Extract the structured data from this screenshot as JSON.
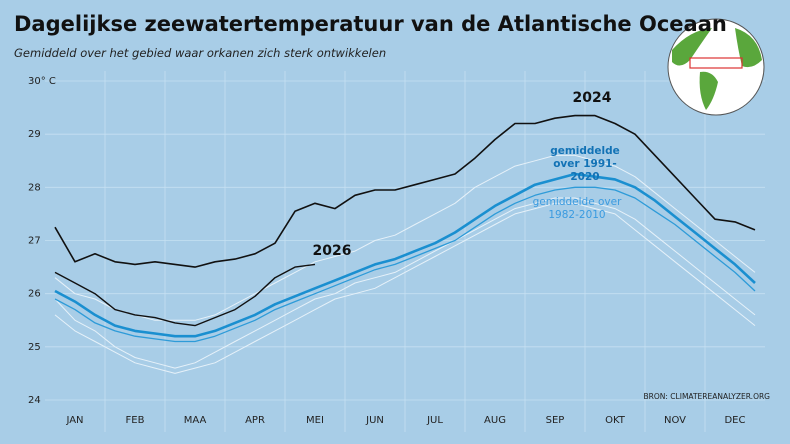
{
  "chart_data": {
    "type": "line",
    "title": "Dagelijkse zeewatertemperatuur van de Atlantische Oceaan",
    "subtitle": "Gemiddeld over het gebied waar orkanen zich sterk ontwikkelen",
    "source": "BRON: CLIMATEREANALYZER.ORG",
    "categories": [
      null,
      "JAN",
      null,
      null,
      "FEB",
      null,
      null,
      "MAA",
      null,
      null,
      "APR",
      null,
      null,
      "MEI",
      null,
      null,
      "JUN",
      null,
      null,
      "JUL",
      null,
      null,
      "AUG",
      null,
      null,
      "SEP",
      null,
      null,
      "OKT",
      null,
      null,
      "NOV",
      null,
      null,
      "DEC",
      null
    ],
    "ylim": [
      24,
      30
    ],
    "yticks": [
      24,
      25,
      26,
      27,
      28,
      29,
      {
        "value": 30,
        "label": "30° C"
      }
    ],
    "grid": true,
    "series": [
      {
        "color": "#e6f1f9",
        "values": [
          25.9,
          25.5,
          25.3,
          25.0,
          24.8,
          24.7,
          24.6,
          24.7,
          24.9,
          25.1,
          25.3,
          25.5,
          25.7,
          25.9,
          26.0,
          26.2,
          26.3,
          26.4,
          26.6,
          26.8,
          27.0,
          27.2,
          27.4,
          27.6,
          27.7,
          27.8,
          27.8,
          27.7,
          27.6,
          27.4,
          27.1,
          26.8,
          26.5,
          26.2,
          25.9,
          25.6
        ]
      },
      {
        "color": "#e6f1f9",
        "values": [
          26.3,
          26.0,
          25.9,
          25.7,
          25.6,
          25.5,
          25.5,
          25.5,
          25.6,
          25.8,
          26.0,
          26.2,
          26.4,
          26.6,
          26.7,
          26.8,
          27.0,
          27.1,
          27.3,
          27.5,
          27.7,
          28.0,
          28.2,
          28.4,
          28.5,
          28.6,
          28.6,
          28.5,
          28.4,
          28.2,
          27.9,
          27.6,
          27.3,
          27.0,
          26.7,
          26.4
        ]
      },
      {
        "color": "#e6f1f9",
        "values": [
          25.6,
          25.3,
          25.1,
          24.9,
          24.7,
          24.6,
          24.5,
          24.6,
          24.7,
          24.9,
          25.1,
          25.3,
          25.5,
          25.7,
          25.9,
          26.0,
          26.1,
          26.3,
          26.5,
          26.7,
          26.9,
          27.1,
          27.3,
          27.5,
          27.6,
          27.7,
          27.7,
          27.6,
          27.5,
          27.2,
          26.9,
          26.6,
          26.3,
          26.0,
          25.7,
          25.4
        ]
      },
      {
        "name": "gemiddelde over 1982-2010",
        "color": "#2e9bd8",
        "width": 1.3,
        "values": [
          25.9,
          25.7,
          25.45,
          25.3,
          25.2,
          25.15,
          25.1,
          25.1,
          25.2,
          25.35,
          25.5,
          25.7,
          25.85,
          26.0,
          26.15,
          26.3,
          26.45,
          26.55,
          26.7,
          26.85,
          27.0,
          27.25,
          27.5,
          27.7,
          27.85,
          27.95,
          28.0,
          28.0,
          27.95,
          27.8,
          27.55,
          27.3,
          27.0,
          26.7,
          26.4,
          26.05
        ]
      },
      {
        "name": "gemiddelde over 1991-2020",
        "color": "#1a8fd0",
        "width": 2.6,
        "values": [
          26.05,
          25.85,
          25.6,
          25.4,
          25.3,
          25.25,
          25.2,
          25.2,
          25.3,
          25.45,
          25.6,
          25.8,
          25.95,
          26.1,
          26.25,
          26.4,
          26.55,
          26.65,
          26.8,
          26.95,
          27.15,
          27.4,
          27.65,
          27.85,
          28.05,
          28.15,
          28.25,
          28.2,
          28.15,
          28.0,
          27.75,
          27.45,
          27.15,
          26.85,
          26.55,
          26.2
        ]
      },
      {
        "name": "2026",
        "color": "#111111",
        "width": 1.4,
        "values": [
          26.4,
          26.2,
          26.0,
          25.7,
          25.6,
          25.55,
          25.45,
          25.4,
          25.55,
          25.7,
          25.95,
          26.3,
          26.5,
          26.55,
          null,
          null,
          null,
          null,
          null,
          null,
          null,
          null,
          null,
          null,
          null,
          null,
          null,
          null,
          null,
          null,
          null,
          null,
          null,
          null,
          null,
          null
        ]
      },
      {
        "name": "2024",
        "color": "#111111",
        "width": 1.6,
        "values": [
          27.25,
          26.6,
          26.75,
          26.6,
          26.55,
          26.6,
          26.55,
          26.5,
          26.6,
          26.65,
          26.75,
          26.95,
          27.55,
          27.7,
          27.6,
          27.85,
          27.95,
          27.95,
          28.05,
          28.15,
          28.25,
          28.55,
          28.9,
          29.2,
          29.2,
          29.3,
          29.35,
          29.35,
          29.2,
          29.0,
          28.6,
          28.2,
          27.8,
          27.4,
          27.35,
          27.2
        ]
      }
    ]
  }
}
